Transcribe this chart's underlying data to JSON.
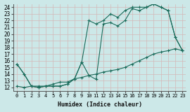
{
  "xlabel": "Humidex (Indice chaleur)",
  "bg_color": "#cce8e8",
  "grid_color": "#b0d0d0",
  "line_color": "#1a6b5a",
  "xlim": [
    -0.5,
    23.5
  ],
  "ylim": [
    11.5,
    24.5
  ],
  "yticks": [
    12,
    13,
    14,
    15,
    16,
    17,
    18,
    19,
    20,
    21,
    22,
    23,
    24
  ],
  "xticks": [
    0,
    1,
    2,
    3,
    4,
    5,
    6,
    7,
    8,
    9,
    10,
    11,
    12,
    13,
    14,
    15,
    16,
    17,
    18,
    19,
    20,
    21,
    22,
    23
  ],
  "line1_x": [
    0,
    1,
    2,
    3,
    4,
    5,
    6,
    7,
    8,
    9,
    10,
    11,
    12,
    13,
    14,
    15,
    16,
    17,
    18,
    19,
    20,
    21,
    22,
    23
  ],
  "line1_y": [
    15.5,
    14.0,
    12.2,
    12.0,
    12.2,
    12.2,
    12.2,
    12.5,
    13.3,
    15.8,
    13.8,
    13.2,
    21.5,
    21.7,
    21.2,
    22.0,
    23.8,
    23.5,
    24.0,
    24.5,
    24.0,
    23.5,
    19.5,
    17.5
  ],
  "line2_x": [
    0,
    1,
    2,
    3,
    4,
    5,
    6,
    7,
    8,
    9,
    10,
    11,
    12,
    13,
    14,
    15,
    16,
    17,
    18,
    19,
    20,
    21,
    22,
    23
  ],
  "line2_y": [
    15.5,
    14.0,
    12.2,
    12.0,
    12.2,
    12.2,
    12.2,
    12.5,
    13.3,
    15.8,
    22.0,
    21.5,
    22.0,
    23.0,
    22.5,
    23.5,
    24.0,
    24.0,
    24.0,
    24.5,
    24.0,
    23.5,
    19.5,
    17.5
  ],
  "line3_x": [
    0,
    1,
    2,
    3,
    4,
    5,
    6,
    7,
    8,
    9,
    10,
    11,
    12,
    13,
    14,
    15,
    16,
    17,
    18,
    19,
    20,
    21,
    22,
    23
  ],
  "line3_y": [
    12.2,
    12.0,
    12.2,
    12.2,
    12.2,
    12.5,
    12.8,
    12.8,
    13.3,
    13.5,
    13.8,
    14.0,
    14.3,
    14.5,
    14.7,
    15.0,
    15.5,
    16.0,
    16.5,
    17.0,
    17.3,
    17.5,
    17.8,
    17.5
  ]
}
